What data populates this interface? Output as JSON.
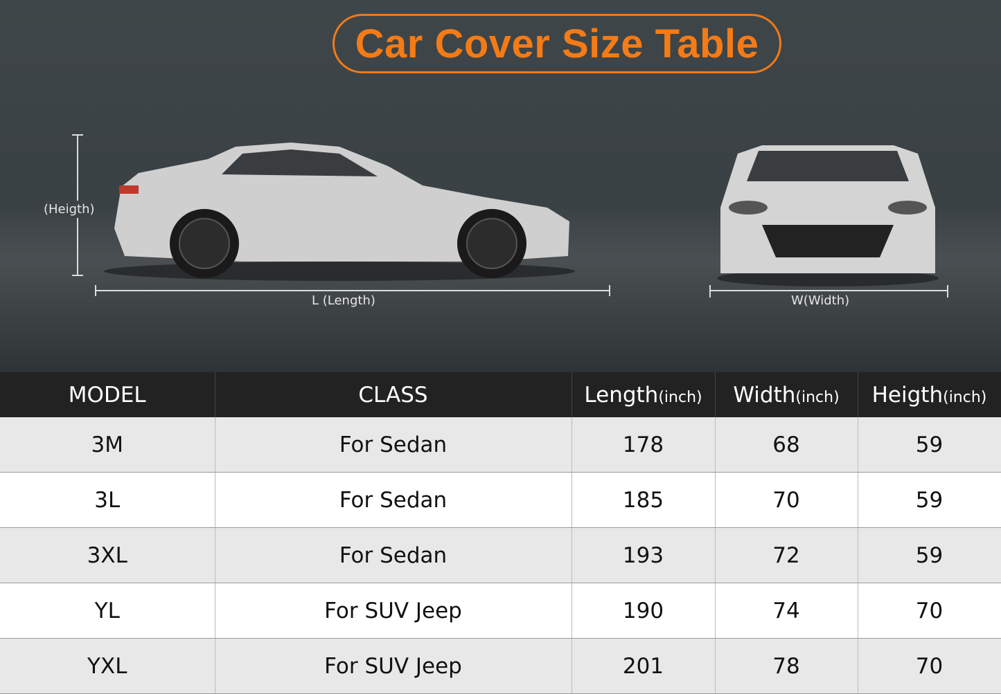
{
  "title": "Car Cover Size Table",
  "labels": {
    "height": "(Heigth)",
    "length": "L (Length)",
    "width": "W(Width)"
  },
  "colors": {
    "accent": "#f47b16",
    "header_bg": "#222222",
    "row_alt": "#e8e8e8"
  },
  "table": {
    "headers": [
      {
        "main": "MODEL",
        "unit": ""
      },
      {
        "main": "CLASS",
        "unit": ""
      },
      {
        "main": "Length",
        "unit": "(inch)"
      },
      {
        "main": "Width",
        "unit": "(inch)"
      },
      {
        "main": "Heigth",
        "unit": "(inch)"
      }
    ],
    "rows": [
      [
        "3M",
        "For Sedan",
        "178",
        "68",
        "59"
      ],
      [
        "3L",
        "For Sedan",
        "185",
        "70",
        "59"
      ],
      [
        "3XL",
        "For Sedan",
        "193",
        "72",
        "59"
      ],
      [
        "YL",
        "For SUV Jeep",
        "190",
        "74",
        "70"
      ],
      [
        "YXL",
        "For SUV Jeep",
        "201",
        "78",
        "70"
      ]
    ]
  }
}
